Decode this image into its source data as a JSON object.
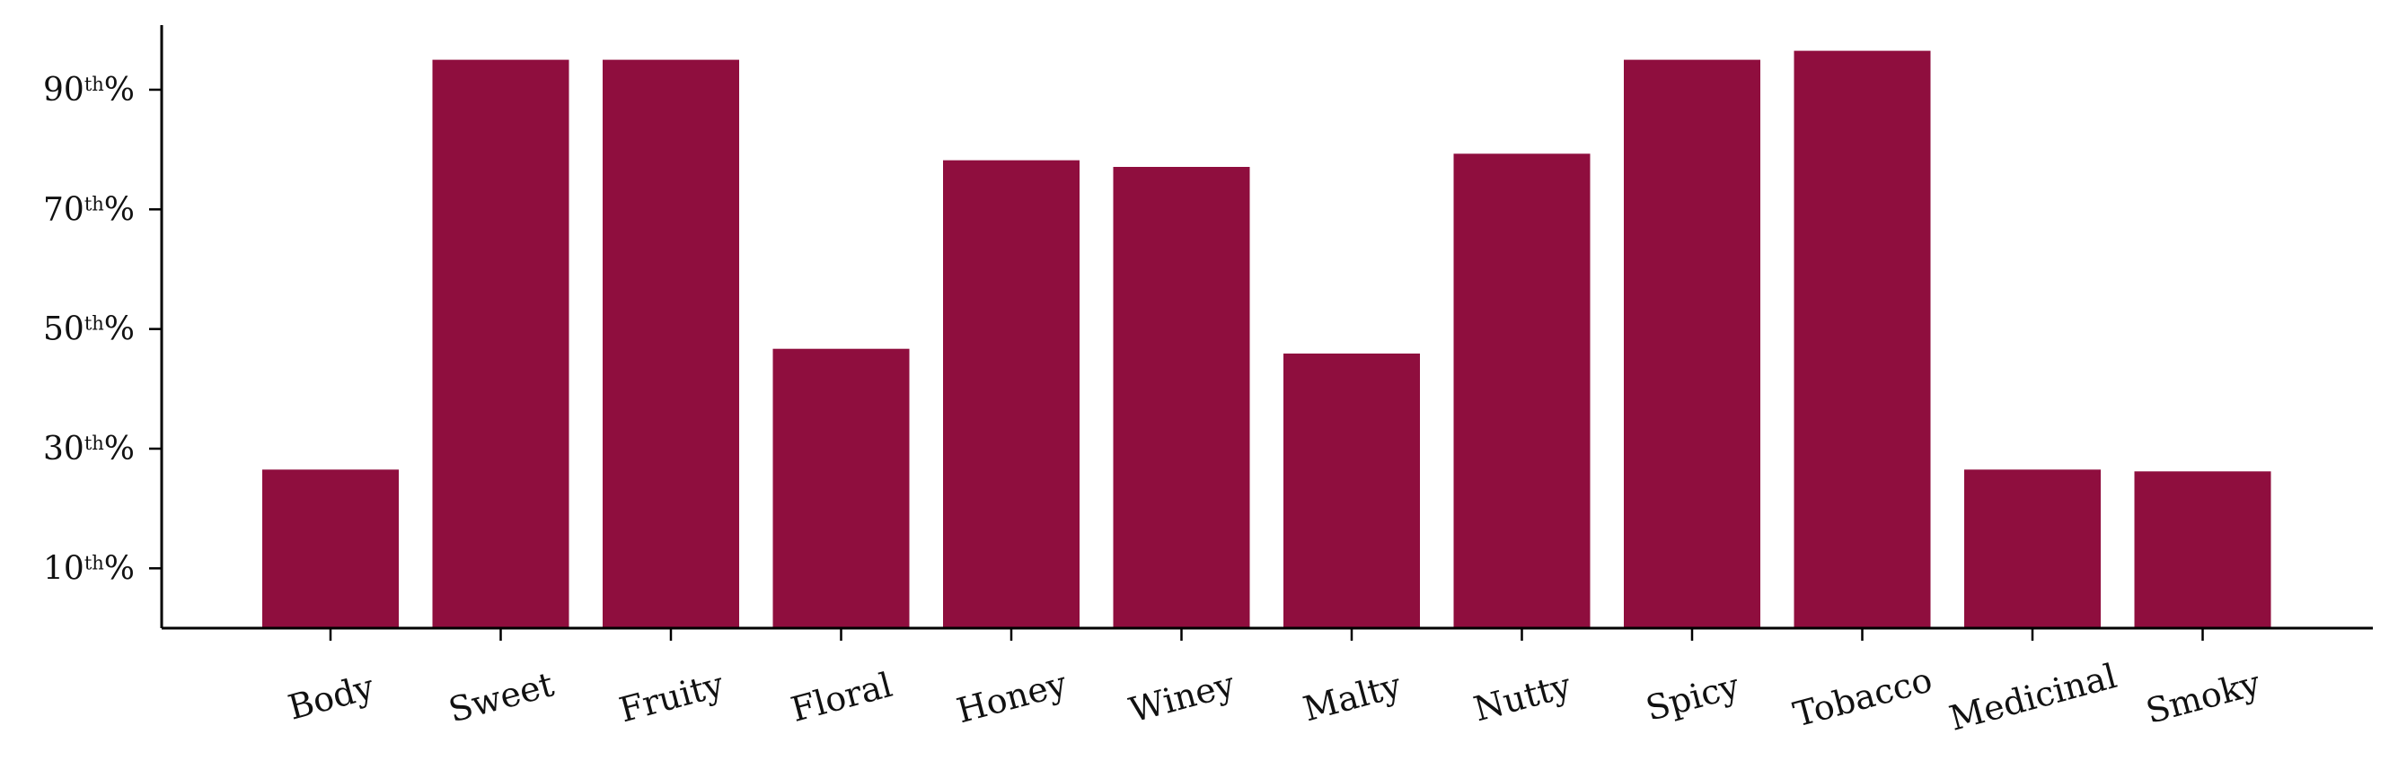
{
  "chart_data": {
    "type": "bar",
    "categories": [
      "Body",
      "Sweet",
      "Fruity",
      "Floral",
      "Honey",
      "Winey",
      "Malty",
      "Nutty",
      "Spicy",
      "Tobacco",
      "Medicinal",
      "Smoky"
    ],
    "values": [
      26.5,
      95.0,
      95.0,
      46.7,
      78.2,
      77.1,
      45.9,
      79.3,
      95.0,
      96.5,
      26.5,
      26.2
    ],
    "bar_color": "#8f0e3e",
    "y_ticks": [
      {
        "value": 10,
        "num": "10",
        "sup": "th",
        "suffix": "%"
      },
      {
        "value": 30,
        "num": "30",
        "sup": "th",
        "suffix": "%"
      },
      {
        "value": 50,
        "num": "50",
        "sup": "th",
        "suffix": "%"
      },
      {
        "value": 70,
        "num": "70",
        "sup": "th",
        "suffix": "%"
      },
      {
        "value": 90,
        "num": "90",
        "sup": "th",
        "suffix": "%"
      }
    ],
    "ylim": [
      0,
      100
    ],
    "title": "",
    "xlabel": "",
    "ylabel": "",
    "grid": false,
    "legend": "none",
    "x_label_rotation": "angled"
  }
}
